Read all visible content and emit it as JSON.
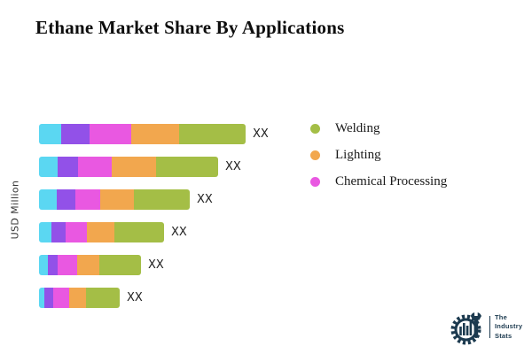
{
  "title": "Ethane Market Share By Applications",
  "chart_data": {
    "type": "bar",
    "orientation": "horizontal",
    "stacked": true,
    "title": "Ethane Market Share By Applications",
    "ylabel": "USD Million",
    "xlabel": "",
    "grid": false,
    "axis_ticks_visible": false,
    "legend_position": "right",
    "bar_count": 6,
    "note": "All bar totals are masked in the chart and labeled 'XX'; series values are relative stacked-segment widths in pixels read from the image.",
    "legend": [
      {
        "label": "Welding",
        "color": "#A4BE46"
      },
      {
        "label": "Lighting",
        "color": "#F2A74E"
      },
      {
        "label": "Chemical Processing",
        "color": "#E958E1"
      }
    ],
    "series": [
      {
        "name": "unlabeled-cyan",
        "color": "#5BD7F2",
        "values": [
          25,
          21,
          20,
          14,
          10,
          6
        ]
      },
      {
        "name": "unlabeled-purple",
        "color": "#9251E8",
        "values": [
          32,
          23,
          21,
          16,
          11,
          10
        ]
      },
      {
        "name": "Chemical Processing",
        "color": "#E958E1",
        "values": [
          47,
          38,
          28,
          24,
          22,
          18
        ]
      },
      {
        "name": "Lighting",
        "color": "#F2A74E",
        "values": [
          54,
          50,
          38,
          31,
          25,
          19
        ]
      },
      {
        "name": "Welding",
        "color": "#A4BE46",
        "values": [
          75,
          70,
          63,
          56,
          47,
          38
        ]
      }
    ],
    "bars_value_labels": [
      "XX",
      "XX",
      "XX",
      "XX",
      "XX",
      "XX"
    ]
  },
  "logo": {
    "lines": [
      "The",
      "Industry",
      "Stats"
    ],
    "color": "#1C3A4F"
  }
}
